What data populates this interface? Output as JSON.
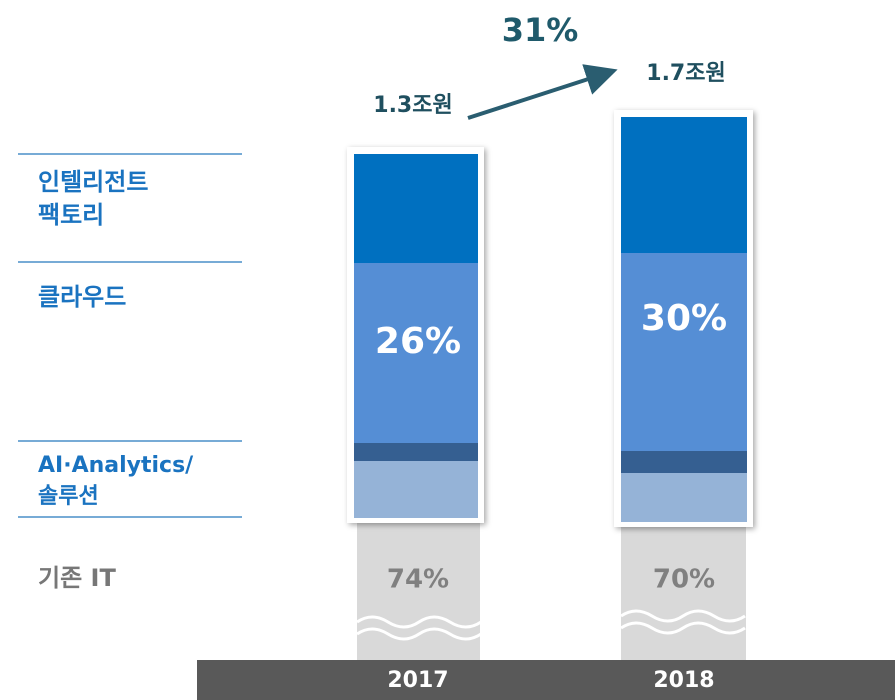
{
  "growth": "31%",
  "segments": [
    {
      "label_lines": [
        "인텔리전트",
        "팩토리"
      ]
    },
    {
      "label_lines": [
        "클라우드"
      ]
    },
    {
      "label_lines": [
        "AI·Analytics/",
        "솔루션"
      ]
    },
    {
      "label_lines": [
        "기존 IT"
      ]
    }
  ],
  "bars": [
    {
      "year": "2017",
      "total": "1.3조원",
      "new_share": "26%",
      "legacy_share": "74%"
    },
    {
      "year": "2018",
      "total": "1.7조원",
      "new_share": "30%",
      "legacy_share": "70%"
    }
  ]
}
